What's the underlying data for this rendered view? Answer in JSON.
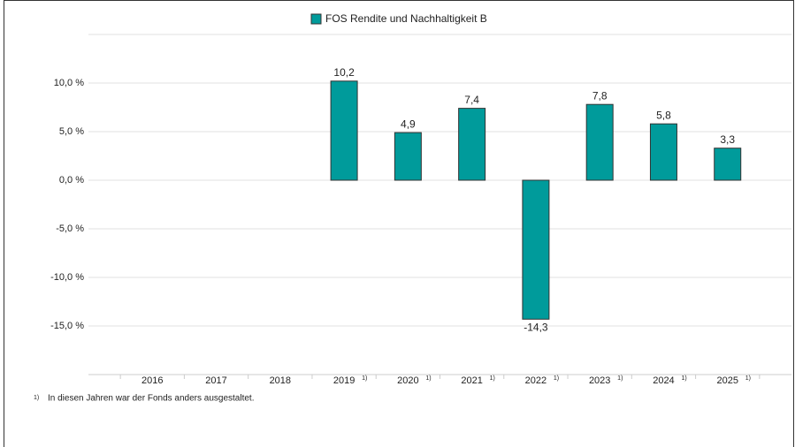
{
  "chart_data": {
    "type": "bar",
    "legend": "FOS Rendite und Nachhaltigkeit B",
    "color": "#009b9b",
    "categories": [
      "2016",
      "2017",
      "2018",
      "2019",
      "2020",
      "2021",
      "2022",
      "2023",
      "2024",
      "2025"
    ],
    "footnote_marks": [
      null,
      null,
      null,
      "1)",
      "1)",
      "1)",
      "1)",
      "1)",
      "1)",
      "1)"
    ],
    "values": [
      null,
      null,
      null,
      10.2,
      4.9,
      7.4,
      -14.3,
      7.8,
      5.8,
      3.3
    ],
    "value_labels": [
      null,
      null,
      null,
      "10,2",
      "4,9",
      "7,4",
      "-14,3",
      "7,8",
      "5,8",
      "3,3"
    ],
    "ylim": [
      -20,
      15
    ],
    "yticks": [
      {
        "value": 10,
        "label": "10,0 %"
      },
      {
        "value": 5,
        "label": "5,0 %"
      },
      {
        "value": 0,
        "label": "0,0 %"
      },
      {
        "value": -5,
        "label": "-5,0 %"
      },
      {
        "value": -10,
        "label": "-10,0 %"
      },
      {
        "value": -15,
        "label": "-15,0 %"
      }
    ],
    "grid": true,
    "footnote": {
      "mark": "1)",
      "text": "In diesen Jahren war der Fonds anders ausgestaltet."
    }
  }
}
